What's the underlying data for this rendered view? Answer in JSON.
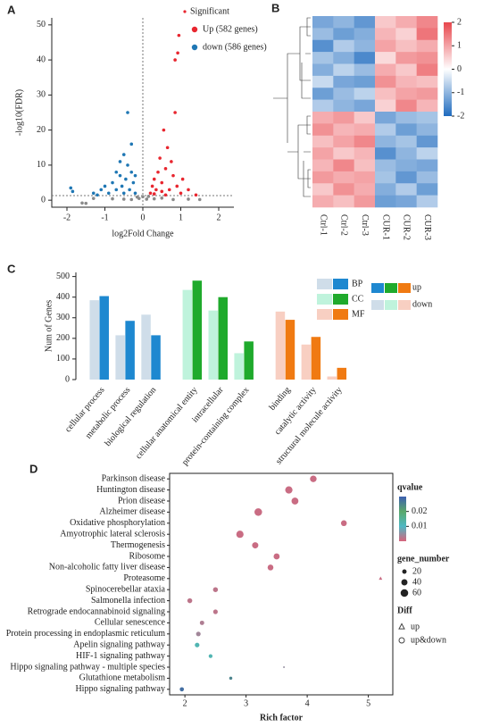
{
  "chart_data": [
    {
      "type": "scatter",
      "panel_label": "A",
      "x_label": "log2Fold Change",
      "y_label": "-log10(FDR)",
      "legend_title": "Significant",
      "xlim": [
        -2.4,
        2.4
      ],
      "xticks": [
        -2,
        -1,
        0,
        1,
        2
      ],
      "ylim": [
        -2,
        52
      ],
      "yticks": [
        0,
        10,
        20,
        30,
        40,
        50
      ],
      "threshold_lines": {
        "x": 0,
        "y": 1.3
      },
      "series": [
        {
          "name": "Up (582 genes)",
          "color": "#e8262f",
          "x": [
            0.2,
            0.25,
            0.3,
            0.35,
            0.4,
            0.45,
            0.5,
            0.55,
            0.6,
            0.65,
            0.7,
            0.8,
            0.85,
            0.9,
            0.92,
            0.95,
            0.85,
            1.0,
            1.2,
            1.4,
            0.3,
            0.5,
            0.6,
            0.75,
            1.05
          ],
          "y": [
            2,
            4,
            6,
            3,
            8,
            12,
            5,
            20,
            9,
            15,
            3,
            7,
            25,
            4,
            42,
            47,
            40,
            2,
            3,
            1.5,
            1.8,
            2.5,
            1.5,
            11,
            6
          ]
        },
        {
          "name": "down (586 genes)",
          "color": "#1f77b4",
          "x": [
            -0.2,
            -0.25,
            -0.3,
            -0.35,
            -0.4,
            -0.45,
            -0.5,
            -0.55,
            -0.6,
            -0.7,
            -0.8,
            -0.9,
            -1.0,
            -1.1,
            -1.3,
            -1.9,
            -1.85,
            -0.4,
            -0.3,
            -0.6,
            -0.2,
            -0.5,
            -1.2,
            -0.7
          ],
          "y": [
            2,
            5,
            8,
            3,
            10,
            6,
            13,
            4,
            7,
            3,
            5,
            2,
            4,
            3,
            2,
            3.5,
            2.5,
            25,
            16,
            11,
            7,
            2,
            1.5,
            8
          ]
        },
        {
          "color": "#8a8a8a",
          "x": [
            -0.1,
            0.1,
            0,
            -0.3,
            0.3,
            0.5,
            -0.5,
            0.8,
            -0.8,
            1.2,
            1.5,
            -1.3,
            0.15,
            -0.15,
            -1.6,
            -1.5
          ],
          "y": [
            0.5,
            0.3,
            1,
            0.2,
            0.4,
            0.6,
            0.3,
            0.2,
            0.4,
            0.3,
            0.2,
            0.5,
            1.1,
            0.9,
            -0.8,
            -0.9
          ]
        }
      ]
    },
    {
      "type": "heatmap",
      "panel_label": "B",
      "columns": [
        "Ctrl-1",
        "Ctrl-2",
        "Ctrl-3",
        "CUR-1",
        "CUR-2",
        "CUR-3"
      ],
      "clim": [
        -2,
        2
      ],
      "cticks": [
        2,
        1,
        0,
        -1,
        -2
      ],
      "colors": [
        "#1f6bbf",
        "#ffffff",
        "#e8474d"
      ],
      "values": [
        [
          -1.2,
          -1.0,
          -1.4,
          0.6,
          0.9,
          1.3
        ],
        [
          -0.9,
          -1.3,
          -1.1,
          0.8,
          0.5,
          1.5
        ],
        [
          -1.5,
          -0.7,
          -1.0,
          1.0,
          0.7,
          0.9
        ],
        [
          -0.8,
          -1.1,
          -1.6,
          0.4,
          1.1,
          1.2
        ],
        [
          -1.1,
          -0.6,
          -0.9,
          0.9,
          0.6,
          1.4
        ],
        [
          -0.5,
          -1.2,
          -1.3,
          1.2,
          0.8,
          0.7
        ],
        [
          -1.3,
          -0.9,
          -0.6,
          0.7,
          1.0,
          1.1
        ],
        [
          -0.7,
          -1.0,
          -1.2,
          0.5,
          1.3,
          0.8
        ],
        [
          0.9,
          1.1,
          0.6,
          -1.2,
          -0.9,
          -0.8
        ],
        [
          1.2,
          0.8,
          0.9,
          -0.7,
          -1.3,
          -1.0
        ],
        [
          0.7,
          1.0,
          1.3,
          -1.0,
          -0.8,
          -1.4
        ],
        [
          1.0,
          0.6,
          0.8,
          -1.5,
          -1.0,
          -0.6
        ],
        [
          0.8,
          1.3,
          0.7,
          -0.9,
          -1.1,
          -1.2
        ],
        [
          1.1,
          0.9,
          1.0,
          -0.8,
          -1.4,
          -0.9
        ],
        [
          0.6,
          1.2,
          0.9,
          -1.1,
          -0.7,
          -1.3
        ],
        [
          0.9,
          0.7,
          1.1,
          -1.3,
          -1.2,
          -0.7
        ]
      ]
    },
    {
      "type": "bar",
      "panel_label": "C",
      "y_label": "Num of Genes",
      "ylim": [
        0,
        520
      ],
      "yticks": [
        0,
        100,
        200,
        300,
        400,
        500
      ],
      "groups": [
        {
          "name": "BP",
          "up_color": "#1e88d0",
          "down_color": "#cfdde9",
          "label_color": "#4ea6da"
        },
        {
          "name": "CC",
          "up_color": "#1faa2c",
          "down_color": "#bff3dc",
          "label_color": "#17862a"
        },
        {
          "name": "MF",
          "up_color": "#f07a12",
          "down_color": "#f8cfc2",
          "label_color": "#d9861c"
        }
      ],
      "categories": [
        "cellular process",
        "metabolic process",
        "biological regulation",
        "cellular anatomical entity",
        "intracellular",
        "protein-containing complex",
        "binding",
        "catalytic activity",
        "structural molecule activity"
      ],
      "category_group": [
        0,
        0,
        0,
        1,
        1,
        1,
        2,
        2,
        2
      ],
      "series": [
        {
          "name": "down",
          "values": [
            385,
            215,
            315,
            435,
            335,
            128,
            330,
            170,
            15
          ]
        },
        {
          "name": "up",
          "values": [
            405,
            285,
            215,
            480,
            400,
            185,
            290,
            207,
            57
          ]
        }
      ]
    },
    {
      "type": "bubble",
      "panel_label": "D",
      "x_label": "Rich factor",
      "color_title": "qvalue",
      "size_title": "gene_number",
      "shape_title": "Diff",
      "xlim": [
        1.75,
        5.4
      ],
      "xticks": [
        2,
        3,
        4,
        5
      ],
      "clim": [
        0,
        0.03
      ],
      "cticks": [
        0.02,
        0.01
      ],
      "colors": [
        "#d7647c",
        "#4fb8c4",
        "#5aa86a",
        "#3d5fb0"
      ],
      "size_legend": [
        20,
        40,
        60
      ],
      "shapes": [
        {
          "label": "up",
          "shape": "triangle"
        },
        {
          "label": "up&down",
          "shape": "circle"
        }
      ],
      "categories": [
        "Parkinson disease",
        "Huntington disease",
        "Prion disease",
        "Alzheimer disease",
        "Oxidative phosphorylation",
        "Amyotrophic lateral sclerosis",
        "Thermogenesis",
        "Ribosome",
        "Non-alcoholic fatty liver disease",
        "Proteasome",
        "Spinocerebellar ataxia",
        "Salmonella infection",
        "Retrograde endocannabinoid signaling",
        "Cellular senescence",
        "Protein processing in endoplasmic reticulum",
        "Apelin signaling pathway",
        "HIF-1 signaling pathway",
        "Hippo signaling pathway - multiple species",
        "Glutathione metabolism",
        "Hippo signaling pathway"
      ],
      "x": [
        4.1,
        3.7,
        3.8,
        3.2,
        4.6,
        2.9,
        3.15,
        3.5,
        3.4,
        5.2,
        2.5,
        2.08,
        2.5,
        2.28,
        2.22,
        2.2,
        2.42,
        3.62,
        2.75,
        1.95
      ],
      "sizes": [
        45,
        55,
        50,
        60,
        35,
        55,
        40,
        38,
        35,
        12,
        25,
        25,
        22,
        20,
        22,
        22,
        15,
        3,
        10,
        18
      ],
      "qvalues": [
        0.001,
        0.001,
        0.001,
        0.001,
        0.001,
        0.001,
        0.001,
        0.001,
        0.001,
        0.001,
        0.002,
        0.002,
        0.002,
        0.003,
        0.004,
        0.012,
        0.012,
        0.005,
        0.025,
        0.028
      ],
      "diff": [
        "up&down",
        "up&down",
        "up&down",
        "up&down",
        "up&down",
        "up&down",
        "up&down",
        "up&down",
        "up&down",
        "up",
        "up&down",
        "up&down",
        "up&down",
        "up&down",
        "up&down",
        "up&down",
        "up&down",
        "up&down",
        "up&down",
        "up&down"
      ]
    }
  ]
}
